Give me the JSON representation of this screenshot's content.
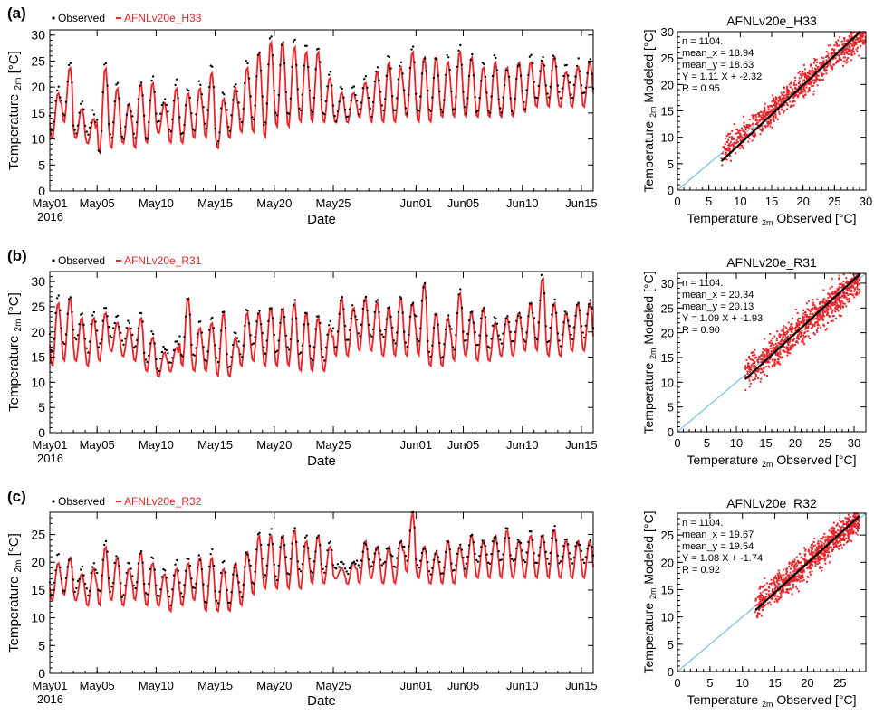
{
  "colors": {
    "observed": "#000000",
    "modeled": "#e8262a",
    "one_to_one": "#7fc4e6",
    "fit": "#000000",
    "axis": "#000000"
  },
  "chart_data": [
    {
      "panel_label": "(a)",
      "type": "line",
      "legend": {
        "observed": "Observed",
        "modeled": "AFNLv20e_H33",
        "placement": "top-left"
      },
      "xlabel": "Date",
      "ylabel_main": "Temperature",
      "ylabel_sub": "2m",
      "ylabel_unit": " [°C]",
      "xlim": [
        0,
        46
      ],
      "ylim": [
        0,
        31
      ],
      "x_ticks": [
        {
          "day": 0,
          "label": "May01",
          "label2": "2016"
        },
        {
          "day": 4,
          "label": "May05"
        },
        {
          "day": 9,
          "label": "May10"
        },
        {
          "day": 14,
          "label": "May15"
        },
        {
          "day": 19,
          "label": "May20"
        },
        {
          "day": 24,
          "label": "May25"
        },
        {
          "day": 31,
          "label": "Jun01"
        },
        {
          "day": 35,
          "label": "Jun05"
        },
        {
          "day": 40,
          "label": "Jun10"
        },
        {
          "day": 45,
          "label": "Jun15"
        }
      ],
      "y_ticks": [
        0,
        5,
        10,
        15,
        20,
        25,
        30
      ],
      "daily_observed": [
        [
          11,
          20
        ],
        [
          14,
          25
        ],
        [
          11,
          17
        ],
        [
          11,
          15
        ],
        [
          7,
          25
        ],
        [
          10,
          21
        ],
        [
          10,
          17
        ],
        [
          10,
          21
        ],
        [
          10,
          22
        ],
        [
          13,
          18
        ],
        [
          11,
          21
        ],
        [
          11,
          20
        ],
        [
          12,
          21
        ],
        [
          12,
          24
        ],
        [
          9,
          19
        ],
        [
          12,
          21
        ],
        [
          13,
          25
        ],
        [
          13,
          27
        ],
        [
          12,
          30
        ],
        [
          14,
          29
        ],
        [
          14,
          29
        ],
        [
          15,
          28
        ],
        [
          15,
          28
        ],
        [
          15,
          23
        ],
        [
          14,
          20
        ],
        [
          14,
          20
        ],
        [
          15,
          22
        ],
        [
          15,
          24
        ],
        [
          15,
          26
        ],
        [
          15,
          25
        ],
        [
          15,
          28
        ],
        [
          15,
          26
        ],
        [
          15,
          26
        ],
        [
          15,
          26
        ],
        [
          15,
          28
        ],
        [
          15,
          26
        ],
        [
          15,
          25
        ],
        [
          15,
          26
        ],
        [
          15,
          24
        ],
        [
          15,
          25
        ],
        [
          16,
          26
        ],
        [
          18,
          26
        ],
        [
          18,
          26
        ],
        [
          18,
          24
        ],
        [
          18,
          25
        ],
        [
          18,
          25
        ],
        [
          18,
          24
        ]
      ],
      "daily_modeled": [
        [
          10,
          19
        ],
        [
          13,
          24
        ],
        [
          10,
          16
        ],
        [
          9,
          14
        ],
        [
          7,
          24
        ],
        [
          8,
          20
        ],
        [
          9,
          17
        ],
        [
          8,
          21
        ],
        [
          9,
          21
        ],
        [
          11,
          17
        ],
        [
          9,
          20
        ],
        [
          9,
          19
        ],
        [
          10,
          20
        ],
        [
          10,
          23
        ],
        [
          8,
          18
        ],
        [
          10,
          20
        ],
        [
          11,
          24
        ],
        [
          11,
          27
        ],
        [
          10,
          29
        ],
        [
          12,
          29
        ],
        [
          12,
          28
        ],
        [
          13,
          27
        ],
        [
          13,
          27
        ],
        [
          13,
          22
        ],
        [
          13,
          19
        ],
        [
          13,
          19
        ],
        [
          14,
          21
        ],
        [
          13,
          23
        ],
        [
          13,
          25
        ],
        [
          13,
          24
        ],
        [
          14,
          27
        ],
        [
          13,
          26
        ],
        [
          13,
          26
        ],
        [
          14,
          25
        ],
        [
          14,
          27
        ],
        [
          14,
          26
        ],
        [
          14,
          24
        ],
        [
          14,
          25
        ],
        [
          14,
          24
        ],
        [
          14,
          25
        ],
        [
          15,
          25
        ],
        [
          16,
          25
        ],
        [
          16,
          26
        ],
        [
          16,
          23
        ],
        [
          16,
          24
        ],
        [
          16,
          25
        ],
        [
          16,
          24
        ]
      ],
      "scatter": {
        "title": "AFNLv20e_H33",
        "xlabel_main": "Temperature ",
        "xlabel_sub": "2m",
        "xlabel_rest": " Observed [°C]",
        "ylabel_main": "Temperature",
        "ylabel_sub": "2m",
        "ylabel_rest": " Modeled [°C]",
        "axis_max": 30,
        "ticks": [
          0,
          5,
          10,
          15,
          20,
          25,
          30
        ],
        "stats": [
          "n = 1104.",
          "mean_x = 18.94",
          "mean_y = 18.63",
          "Y = 1.11 X + -2.32",
          "R = 0.95"
        ],
        "slope": 1.11,
        "intercept": -2.32,
        "x_range": [
          7,
          30
        ],
        "spread": 1.8
      }
    },
    {
      "panel_label": "(b)",
      "type": "line",
      "legend": {
        "observed": "Observed",
        "modeled": "AFNLv20e_R31",
        "placement": "top-left"
      },
      "xlabel": "Date",
      "ylabel_main": "Temperature",
      "ylabel_sub": "2m",
      "ylabel_unit": " [°C]",
      "xlim": [
        0,
        46
      ],
      "ylim": [
        0,
        32
      ],
      "x_ticks": [
        {
          "day": 0,
          "label": "May01",
          "label2": "2016"
        },
        {
          "day": 4,
          "label": "May05"
        },
        {
          "day": 9,
          "label": "May10"
        },
        {
          "day": 14,
          "label": "May15"
        },
        {
          "day": 19,
          "label": "May20"
        },
        {
          "day": 24,
          "label": "May25"
        },
        {
          "day": 31,
          "label": "Jun01"
        },
        {
          "day": 35,
          "label": "Jun05"
        },
        {
          "day": 40,
          "label": "Jun10"
        },
        {
          "day": 45,
          "label": "Jun15"
        }
      ],
      "y_ticks": [
        0,
        5,
        10,
        15,
        20,
        25,
        30
      ],
      "daily_observed": [
        [
          16,
          27
        ],
        [
          17,
          27
        ],
        [
          18,
          24
        ],
        [
          16,
          24
        ],
        [
          17,
          25
        ],
        [
          19,
          23
        ],
        [
          18,
          22
        ],
        [
          17,
          24
        ],
        [
          14,
          20
        ],
        [
          13,
          17
        ],
        [
          14,
          18
        ],
        [
          15,
          27
        ],
        [
          15,
          22
        ],
        [
          14,
          23
        ],
        [
          14,
          24
        ],
        [
          13,
          20
        ],
        [
          15,
          24
        ],
        [
          17,
          24
        ],
        [
          16,
          25
        ],
        [
          16,
          25
        ],
        [
          16,
          26
        ],
        [
          15,
          24
        ],
        [
          14,
          24
        ],
        [
          14,
          22
        ],
        [
          17,
          27
        ],
        [
          18,
          25
        ],
        [
          19,
          27
        ],
        [
          19,
          26
        ],
        [
          19,
          25
        ],
        [
          18,
          27
        ],
        [
          17,
          26
        ],
        [
          18,
          30
        ],
        [
          15,
          24
        ],
        [
          15,
          23
        ],
        [
          16,
          28
        ],
        [
          18,
          24
        ],
        [
          17,
          25
        ],
        [
          17,
          23
        ],
        [
          18,
          23
        ],
        [
          18,
          24
        ],
        [
          18,
          26
        ],
        [
          18,
          31
        ],
        [
          18,
          26
        ],
        [
          18,
          24
        ],
        [
          19,
          26
        ],
        [
          19,
          26
        ],
        [
          19,
          25
        ]
      ],
      "daily_modeled": [
        [
          13,
          26
        ],
        [
          14,
          27
        ],
        [
          14,
          23
        ],
        [
          13,
          23
        ],
        [
          14,
          24
        ],
        [
          16,
          22
        ],
        [
          15,
          21
        ],
        [
          14,
          23
        ],
        [
          12,
          19
        ],
        [
          11,
          16
        ],
        [
          12,
          17
        ],
        [
          13,
          27
        ],
        [
          12,
          21
        ],
        [
          12,
          22
        ],
        [
          11,
          24
        ],
        [
          11,
          19
        ],
        [
          13,
          24
        ],
        [
          14,
          24
        ],
        [
          13,
          25
        ],
        [
          13,
          25
        ],
        [
          13,
          26
        ],
        [
          12,
          24
        ],
        [
          12,
          23
        ],
        [
          12,
          21
        ],
        [
          15,
          27
        ],
        [
          15,
          25
        ],
        [
          16,
          27
        ],
        [
          16,
          26
        ],
        [
          15,
          25
        ],
        [
          15,
          27
        ],
        [
          15,
          26
        ],
        [
          15,
          30
        ],
        [
          13,
          24
        ],
        [
          13,
          23
        ],
        [
          14,
          28
        ],
        [
          15,
          24
        ],
        [
          14,
          25
        ],
        [
          14,
          22
        ],
        [
          15,
          23
        ],
        [
          15,
          24
        ],
        [
          16,
          26
        ],
        [
          16,
          31
        ],
        [
          15,
          26
        ],
        [
          15,
          24
        ],
        [
          16,
          26
        ],
        [
          16,
          26
        ],
        [
          16,
          25
        ]
      ],
      "scatter": {
        "title": "AFNLv20e_R31",
        "xlabel_main": "Temperature ",
        "xlabel_sub": "2m",
        "xlabel_rest": " Observed [°C]",
        "ylabel_main": "Temperature",
        "ylabel_sub": "2m",
        "ylabel_rest": " Modeled [°C]",
        "axis_max": 32,
        "ticks": [
          0,
          5,
          10,
          15,
          20,
          25,
          30
        ],
        "stats": [
          "n = 1104.",
          "mean_x = 20.34",
          "mean_y = 20.13",
          "Y = 1.09 X + -1.93",
          "R = 0.90"
        ],
        "slope": 1.09,
        "intercept": -1.93,
        "x_range": [
          11.5,
          31
        ],
        "spread": 2.4
      }
    },
    {
      "panel_label": "(c)",
      "type": "line",
      "legend": {
        "observed": "Observed",
        "modeled": "AFNLv20e_R32",
        "placement": "top-left"
      },
      "xlabel": "Date",
      "ylabel_main": "Temperature",
      "ylabel_sub": "2m",
      "ylabel_unit": " [°C]",
      "xlim": [
        0,
        46
      ],
      "ylim": [
        0,
        29
      ],
      "x_ticks": [
        {
          "day": 0,
          "label": "May01",
          "label2": "2016"
        },
        {
          "day": 4,
          "label": "May05"
        },
        {
          "day": 9,
          "label": "May10"
        },
        {
          "day": 14,
          "label": "May15"
        },
        {
          "day": 19,
          "label": "May20"
        },
        {
          "day": 24,
          "label": "May25"
        },
        {
          "day": 31,
          "label": "Jun01"
        },
        {
          "day": 35,
          "label": "Jun05"
        },
        {
          "day": 40,
          "label": "Jun10"
        },
        {
          "day": 45,
          "label": "Jun15"
        }
      ],
      "y_ticks": [
        0,
        5,
        10,
        15,
        20,
        25
      ],
      "daily_observed": [
        [
          14,
          21
        ],
        [
          15,
          21
        ],
        [
          15,
          19
        ],
        [
          14,
          20
        ],
        [
          14,
          24
        ],
        [
          15,
          21
        ],
        [
          14,
          20
        ],
        [
          15,
          22
        ],
        [
          14,
          21
        ],
        [
          14,
          19
        ],
        [
          13,
          20
        ],
        [
          14,
          21
        ],
        [
          15,
          21
        ],
        [
          13,
          22
        ],
        [
          13,
          20
        ],
        [
          13,
          20
        ],
        [
          14,
          22
        ],
        [
          16,
          25
        ],
        [
          17,
          26
        ],
        [
          17,
          25
        ],
        [
          18,
          26
        ],
        [
          18,
          25
        ],
        [
          18,
          25
        ],
        [
          18,
          24
        ],
        [
          19,
          20
        ],
        [
          18,
          20
        ],
        [
          19,
          24
        ],
        [
          19,
          23
        ],
        [
          19,
          23
        ],
        [
          19,
          24
        ],
        [
          20,
          29
        ],
        [
          19,
          23
        ],
        [
          18,
          22
        ],
        [
          18,
          24
        ],
        [
          18,
          23
        ],
        [
          19,
          25
        ],
        [
          20,
          24
        ],
        [
          20,
          25
        ],
        [
          20,
          26
        ],
        [
          20,
          24
        ],
        [
          20,
          26
        ],
        [
          20,
          25
        ],
        [
          20,
          26
        ],
        [
          20,
          24
        ],
        [
          20,
          24
        ],
        [
          20,
          24
        ],
        [
          20,
          23
        ]
      ],
      "daily_modeled": [
        [
          13,
          20
        ],
        [
          14,
          21
        ],
        [
          13,
          18
        ],
        [
          12,
          19
        ],
        [
          12,
          23
        ],
        [
          13,
          21
        ],
        [
          12,
          19
        ],
        [
          13,
          22
        ],
        [
          12,
          20
        ],
        [
          12,
          18
        ],
        [
          11,
          19
        ],
        [
          12,
          20
        ],
        [
          13,
          21
        ],
        [
          11,
          21
        ],
        [
          11,
          19
        ],
        [
          11,
          20
        ],
        [
          12,
          22
        ],
        [
          14,
          25
        ],
        [
          15,
          25
        ],
        [
          15,
          25
        ],
        [
          15,
          26
        ],
        [
          15,
          24
        ],
        [
          16,
          25
        ],
        [
          16,
          23
        ],
        [
          17,
          19
        ],
        [
          16,
          20
        ],
        [
          16,
          24
        ],
        [
          17,
          23
        ],
        [
          16,
          23
        ],
        [
          16,
          24
        ],
        [
          18,
          29
        ],
        [
          17,
          23
        ],
        [
          16,
          22
        ],
        [
          16,
          24
        ],
        [
          16,
          23
        ],
        [
          17,
          25
        ],
        [
          17,
          24
        ],
        [
          17,
          25
        ],
        [
          17,
          26
        ],
        [
          17,
          24
        ],
        [
          17,
          25
        ],
        [
          17,
          25
        ],
        [
          17,
          26
        ],
        [
          17,
          24
        ],
        [
          17,
          24
        ],
        [
          17,
          24
        ],
        [
          17,
          23
        ]
      ],
      "scatter": {
        "title": "AFNLv20e_R32",
        "xlabel_main": "Temperature ",
        "xlabel_sub": "2m",
        "xlabel_rest": " Observed [°C]",
        "ylabel_main": "Temperature",
        "ylabel_sub": "2m",
        "ylabel_rest": " Modeled [°C]",
        "axis_max": 29,
        "ticks": [
          0,
          5,
          10,
          15,
          20,
          25
        ],
        "stats": [
          "n = 1104.",
          "mean_x = 19.67",
          "mean_y = 19.54",
          "Y = 1.08 X + -1.74",
          "R = 0.92"
        ],
        "slope": 1.08,
        "intercept": -1.74,
        "x_range": [
          12,
          28
        ],
        "spread": 1.9
      }
    }
  ]
}
